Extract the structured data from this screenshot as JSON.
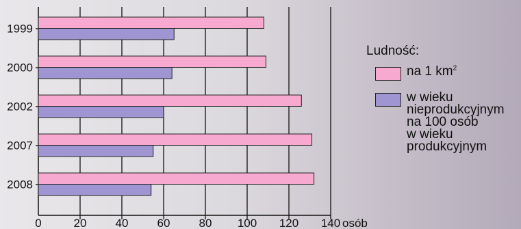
{
  "chart_data": {
    "type": "bar",
    "orientation": "horizontal",
    "categories": [
      "1999",
      "2000",
      "2002",
      "2007",
      "2008"
    ],
    "series": [
      {
        "name": "na 1 km²",
        "color": "#f7a9cf",
        "values": [
          108,
          109,
          126,
          131,
          132
        ]
      },
      {
        "name": "w wieku nieprodukcyjnym na 100 osób w wieku produkcyjnym",
        "color": "#9e95d2",
        "values": [
          65,
          64,
          60,
          55,
          54
        ]
      }
    ],
    "xlim": [
      0,
      140
    ],
    "xticks": [
      0,
      20,
      40,
      60,
      80,
      100,
      120,
      140
    ],
    "xunit": "osób",
    "grid": true,
    "legend": {
      "title": "Ludność:",
      "position": "right",
      "items": [
        {
          "main": "na 1 km",
          "sup": "2",
          "color": "#f7a9cf"
        },
        {
          "lines": [
            "w wieku",
            "nieprodukcyjnym",
            "na 100 osób",
            "w wieku",
            "produkcyjnym"
          ],
          "color": "#9e95d2"
        }
      ]
    }
  }
}
